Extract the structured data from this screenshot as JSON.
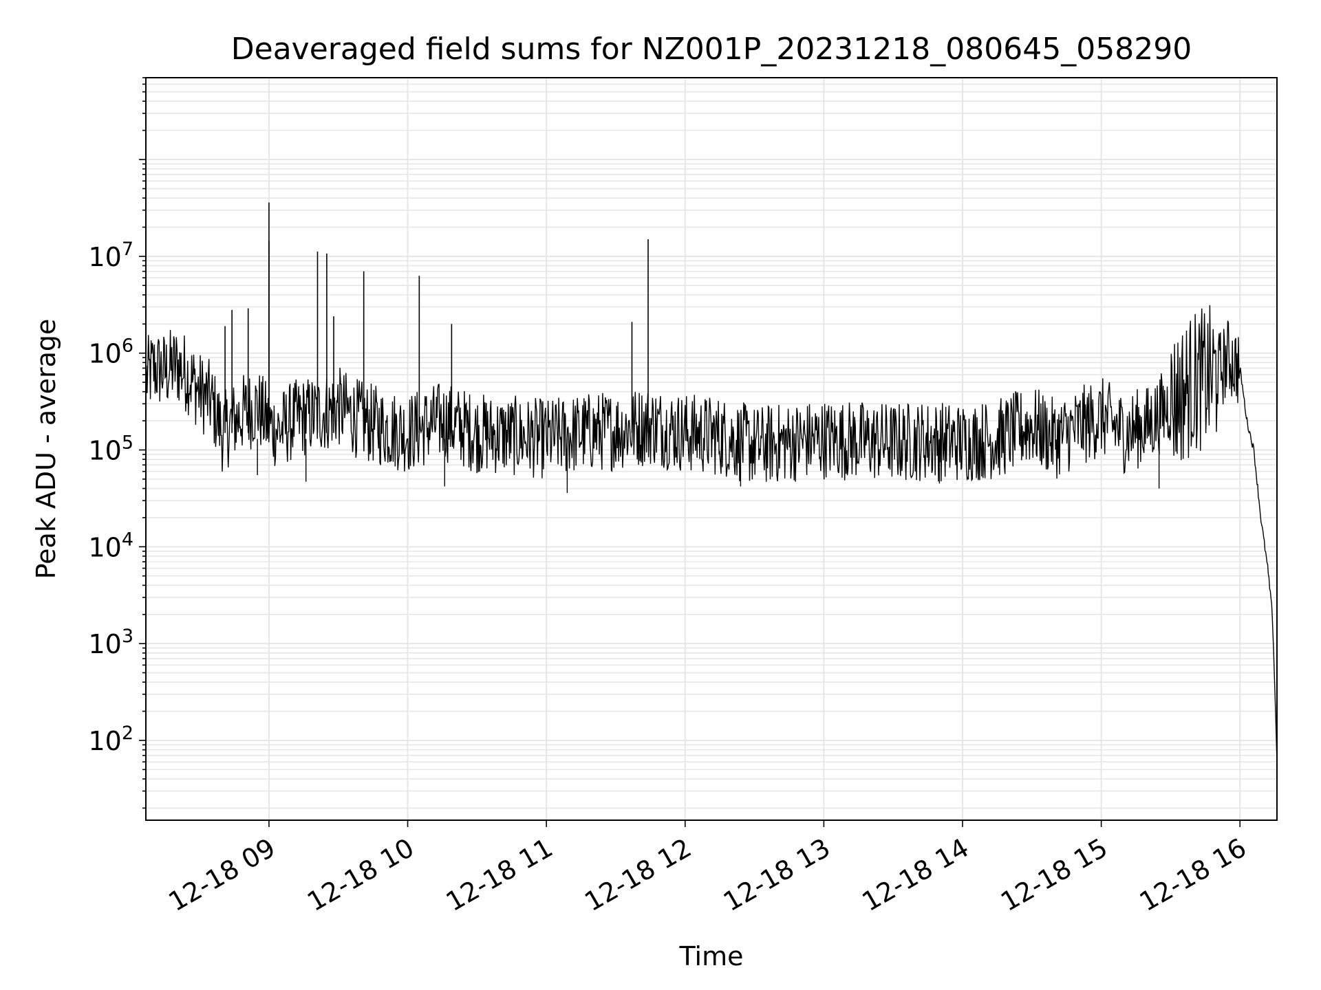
{
  "chart_data": {
    "type": "line",
    "title": "Deaveraged field sums for NZ001P_20231218_080645_058290",
    "xlabel": "Time",
    "ylabel": "Peak ADU - average",
    "yscale": "log",
    "ylim": [
      15,
      700000000
    ],
    "xlim": [
      "2023-12-18 08:06:45",
      "2023-12-18 16:16:00"
    ],
    "grid": true,
    "line_color": "#000000",
    "grid_color": "#e6e6e6",
    "x_ticks": [
      "12-18 09",
      "12-18 10",
      "12-18 11",
      "12-18 12",
      "12-18 13",
      "12-18 14",
      "12-18 15",
      "12-18 16"
    ],
    "x_tick_times": [
      "2023-12-18 09:00",
      "2023-12-18 10:00",
      "2023-12-18 11:00",
      "2023-12-18 12:00",
      "2023-12-18 13:00",
      "2023-12-18 14:00",
      "2023-12-18 15:00",
      "2023-12-18 16:00"
    ],
    "y_ticks": [
      {
        "value": 100,
        "base": "10",
        "exp": "2"
      },
      {
        "value": 1000,
        "base": "10",
        "exp": "3"
      },
      {
        "value": 10000,
        "base": "10",
        "exp": "4"
      },
      {
        "value": 100000,
        "base": "10",
        "exp": "5"
      },
      {
        "value": 1000000,
        "base": "10",
        "exp": "6"
      },
      {
        "value": 10000000,
        "base": "10",
        "exp": "7"
      }
    ],
    "series": [
      {
        "x": [
          "2023-12-18 08:07",
          "2023-12-18 08:10",
          "2023-12-18 08:15",
          "2023-12-18 08:20",
          "2023-12-18 08:25",
          "2023-12-18 08:30",
          "2023-12-18 08:35",
          "2023-12-18 08:40",
          "2023-12-18 08:45",
          "2023-12-18 08:50",
          "2023-12-18 08:55",
          "2023-12-18 09:00",
          "2023-12-18 09:05",
          "2023-12-18 09:10",
          "2023-12-18 09:15",
          "2023-12-18 09:20",
          "2023-12-18 09:25",
          "2023-12-18 09:30",
          "2023-12-18 09:40",
          "2023-12-18 09:50",
          "2023-12-18 10:00",
          "2023-12-18 10:15",
          "2023-12-18 10:30",
          "2023-12-18 10:45",
          "2023-12-18 11:00",
          "2023-12-18 11:15",
          "2023-12-18 11:30",
          "2023-12-18 11:45",
          "2023-12-18 12:00",
          "2023-12-18 12:15",
          "2023-12-18 12:30",
          "2023-12-18 12:45",
          "2023-12-18 13:00",
          "2023-12-18 13:15",
          "2023-12-18 13:30",
          "2023-12-18 13:45",
          "2023-12-18 14:00",
          "2023-12-18 14:15",
          "2023-12-18 14:30",
          "2023-12-18 14:40",
          "2023-12-18 14:50",
          "2023-12-18 15:00",
          "2023-12-18 15:10",
          "2023-12-18 15:20",
          "2023-12-18 15:30",
          "2023-12-18 15:40",
          "2023-12-18 15:50",
          "2023-12-18 15:55",
          "2023-12-18 16:00",
          "2023-12-18 16:03",
          "2023-12-18 16:06",
          "2023-12-18 16:09",
          "2023-12-18 16:12",
          "2023-12-18 16:14",
          "2023-12-18 16:15",
          "2023-12-18 16:16"
        ],
        "y": [
          550000,
          700000,
          650000,
          750000,
          600000,
          400000,
          320000,
          150000,
          200000,
          250000,
          280000,
          180000,
          160000,
          200000,
          220000,
          230000,
          250000,
          280000,
          200000,
          170000,
          150000,
          200000,
          150000,
          140000,
          130000,
          150000,
          160000,
          180000,
          150000,
          140000,
          110000,
          120000,
          130000,
          125000,
          120000,
          125000,
          120000,
          130000,
          180000,
          130000,
          170000,
          220000,
          150000,
          180000,
          300000,
          500000,
          600000,
          900000,
          700000,
          200000,
          100000,
          20000,
          6000,
          2000,
          400,
          60
        ]
      }
    ],
    "spikes": [
      {
        "x": "2023-12-18 08:41",
        "y": 1900000
      },
      {
        "x": "2023-12-18 08:44",
        "y": 2800000
      },
      {
        "x": "2023-12-18 08:51",
        "y": 2900000
      },
      {
        "x": "2023-12-18 09:00",
        "y": 36000000
      },
      {
        "x": "2023-12-18 09:00",
        "y": 14500000
      },
      {
        "x": "2023-12-18 09:21",
        "y": 11200000
      },
      {
        "x": "2023-12-18 09:25",
        "y": 10700000
      },
      {
        "x": "2023-12-18 09:28",
        "y": 2400000
      },
      {
        "x": "2023-12-18 09:41",
        "y": 7000000
      },
      {
        "x": "2023-12-18 10:05",
        "y": 6300000
      },
      {
        "x": "2023-12-18 10:19",
        "y": 2000000
      },
      {
        "x": "2023-12-18 11:37",
        "y": 2100000
      },
      {
        "x": "2023-12-18 11:44",
        "y": 15000000
      }
    ],
    "dips": [
      {
        "x": "2023-12-18 08:55",
        "y": 55000
      },
      {
        "x": "2023-12-18 09:16",
        "y": 47000
      },
      {
        "x": "2023-12-18 10:16",
        "y": 42000
      },
      {
        "x": "2023-12-18 11:09",
        "y": 36000
      },
      {
        "x": "2023-12-18 12:24",
        "y": 42000
      },
      {
        "x": "2023-12-18 13:50",
        "y": 45000
      },
      {
        "x": "2023-12-18 15:25",
        "y": 40000
      }
    ]
  }
}
